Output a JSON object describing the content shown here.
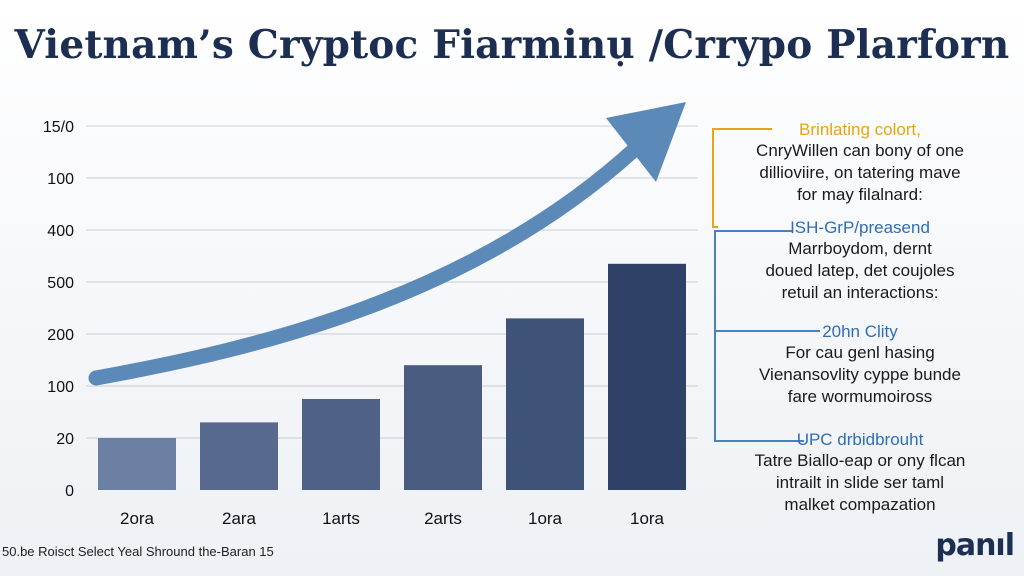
{
  "title": "Vietnam’s Cryptoc Fiarminụ /Crrypo Plarforn",
  "chart_data": {
    "type": "bar",
    "title": "Vietnam’s Cryptoc Fiarminụ /Crrypo Plarforn",
    "xlabel": "",
    "ylabel": "",
    "ytick_labels": [
      "0",
      "20",
      "100",
      "200",
      "500",
      "400",
      "100",
      "15/0"
    ],
    "categories": [
      "2ora",
      "2ara",
      "1arts",
      "2arts",
      "1ora",
      "1ora"
    ],
    "values": [
      20,
      26,
      35,
      48,
      66,
      87
    ],
    "ylim": [
      0,
      140
    ],
    "grid": true,
    "trend_arrow": true,
    "colors": [
      "#6b80a3",
      "#58698f",
      "#4f6187",
      "#4a5b80",
      "#3f5278",
      "#2f4166"
    ]
  },
  "sidebar": [
    {
      "head": "Brinlating colort,",
      "head_color": "#e8a317",
      "bracket_color": "#e8a317",
      "lines": [
        "CnryWillen can bony of one",
        "dillioviire, on tatering mave",
        "for may filalnard:"
      ]
    },
    {
      "head": "ISH-GrP/preasend",
      "head_color": "#2f6eb5",
      "bracket_color": "#4a7fc0",
      "lines": [
        "Marrboydom, dernt",
        "doued latep, det coujoles",
        "retuil an interactions:"
      ]
    },
    {
      "head": "20hn Clity",
      "head_color": "#2f6eb5",
      "bracket_color": "#4a7fc0",
      "lines": [
        "For cau genl hasing",
        "Vienansovlity cyppe bunde",
        "fare wormumoiross"
      ]
    },
    {
      "head": "UPC drbidbrouht",
      "head_color": "#2f6eb5",
      "bracket_color": "#4a7fc0",
      "lines": [
        "Tatre Biallo-eap or ony flcan",
        "intrailt in slide ser taml",
        "malket compazation"
      ]
    }
  ],
  "footer": "50.be Roisct Select Yeal Shround the-Baran 15",
  "logo": "panıl",
  "accent": "#5b89b8"
}
